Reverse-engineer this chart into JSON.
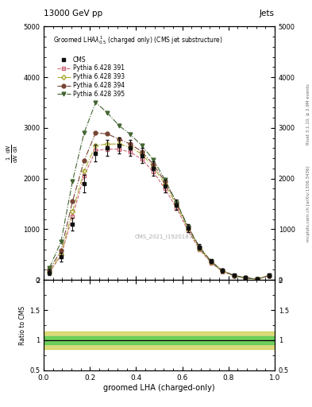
{
  "title_top": "13000 GeV pp",
  "title_right": "Jets",
  "plot_title": "Groomed LHA$\\lambda^{1}_{0.5}$ (charged only) (CMS jet substructure)",
  "xlabel": "groomed LHA (charged-only)",
  "right_label_top": "Rivet 3.1.10, ≥ 2.9M events",
  "right_label_bot": "mcplots.cern.ch [arXiv:1306.3436]",
  "watermark": "CMS_2021_I1920187",
  "x": [
    0.025,
    0.075,
    0.125,
    0.175,
    0.225,
    0.275,
    0.325,
    0.375,
    0.425,
    0.475,
    0.525,
    0.575,
    0.625,
    0.675,
    0.725,
    0.775,
    0.825,
    0.875,
    0.925,
    0.975
  ],
  "cms_y": [
    150,
    450,
    1100,
    1900,
    2500,
    2600,
    2650,
    2600,
    2450,
    2200,
    1850,
    1480,
    1020,
    650,
    370,
    185,
    90,
    45,
    18,
    90
  ],
  "cms_yerr": [
    60,
    90,
    130,
    170,
    160,
    160,
    160,
    160,
    150,
    140,
    120,
    100,
    80,
    60,
    45,
    35,
    25,
    18,
    12,
    35
  ],
  "p391_y": [
    150,
    480,
    1250,
    2050,
    2550,
    2580,
    2580,
    2520,
    2380,
    2130,
    1800,
    1420,
    970,
    600,
    335,
    165,
    78,
    37,
    14,
    80
  ],
  "p393_y": [
    165,
    500,
    1350,
    2150,
    2650,
    2680,
    2680,
    2620,
    2480,
    2230,
    1890,
    1480,
    1010,
    620,
    350,
    172,
    82,
    39,
    15,
    83
  ],
  "p394_y": [
    200,
    580,
    1550,
    2350,
    2900,
    2880,
    2780,
    2680,
    2530,
    2280,
    1940,
    1530,
    1050,
    650,
    368,
    182,
    87,
    41,
    16,
    86
  ],
  "p395_y": [
    240,
    750,
    1950,
    2900,
    3500,
    3300,
    3050,
    2870,
    2650,
    2370,
    1980,
    1530,
    1040,
    635,
    360,
    176,
    82,
    38,
    14,
    83
  ],
  "ylim": [
    0,
    5000
  ],
  "yticks": [
    0,
    1000,
    2000,
    3000,
    4000,
    5000
  ],
  "ytick_labels": [
    "0",
    "1000",
    "2000",
    "3000",
    "4000",
    "5000"
  ],
  "xlim": [
    0,
    1
  ],
  "ratio_ylim": [
    0.5,
    2.0
  ],
  "ratio_yticks": [
    0.5,
    1.0,
    1.5,
    2.0
  ],
  "cms_color": "#111111",
  "p391_color": "#cc6677",
  "p393_color": "#aaaa33",
  "p394_color": "#774433",
  "p395_color": "#446633",
  "band_green": "#55cc55",
  "band_yellow": "#cccc44",
  "legend_labels": [
    "CMS",
    "Pythia 6.428 391",
    "Pythia 6.428 393",
    "Pythia 6.428 394",
    "Pythia 6.428 395"
  ]
}
